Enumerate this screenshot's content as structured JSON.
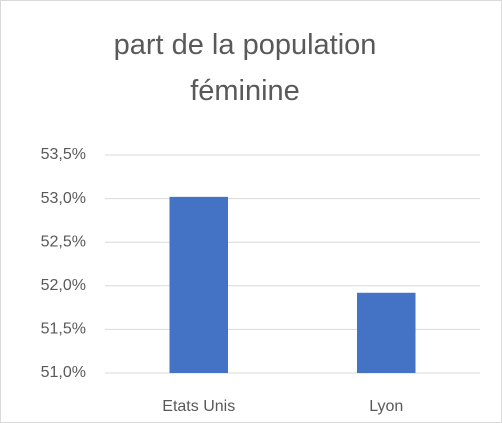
{
  "chart_data": {
    "type": "bar",
    "title": "part de la population féminine",
    "categories": [
      "Etats Unis",
      "Lyon"
    ],
    "values": [
      53.02,
      51.92
    ],
    "color": "#4472c4",
    "ylim": [
      51,
      53.5
    ],
    "yticks": [
      {
        "value": 51,
        "label": "51,0%"
      },
      {
        "value": 51.5,
        "label": "51,5%"
      },
      {
        "value": 52,
        "label": "52,0%"
      },
      {
        "value": 52.5,
        "label": "52,5%"
      },
      {
        "value": 53,
        "label": "53,0%"
      },
      {
        "value": 53.5,
        "label": "53,5%"
      }
    ],
    "grid": true
  }
}
